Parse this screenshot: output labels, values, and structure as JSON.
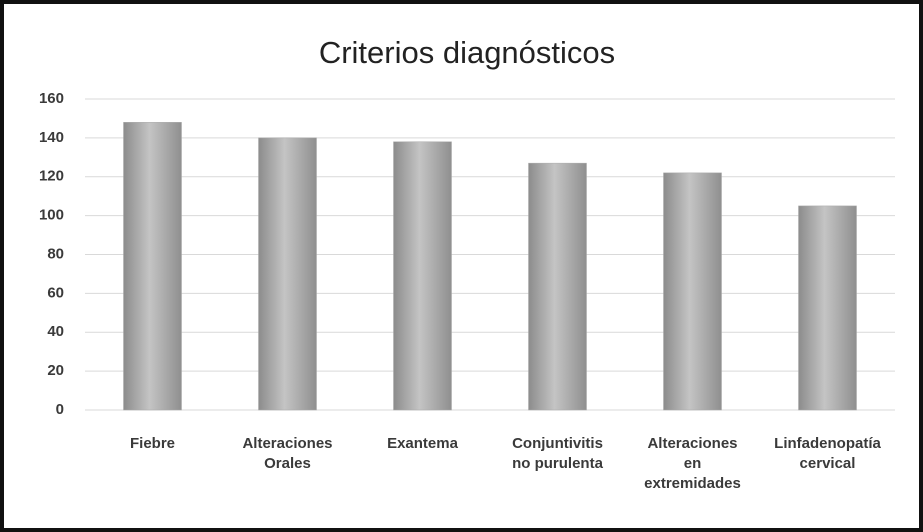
{
  "chart_data": {
    "type": "bar",
    "title": "Criterios diagnósticos",
    "categories": [
      "Fiebre",
      "Alteraciones\nOrales",
      "Exantema",
      "Conjuntivitis\nno purulenta",
      "Alteraciones\nen\nextremidades",
      "Linfadenopatía\ncervical"
    ],
    "values": [
      148,
      140,
      138,
      127,
      122,
      105
    ],
    "color": "#a9a9a9",
    "ylim": [
      0,
      160
    ],
    "yticks": [
      0,
      20,
      40,
      60,
      80,
      100,
      120,
      140,
      160
    ],
    "grid": true
  }
}
